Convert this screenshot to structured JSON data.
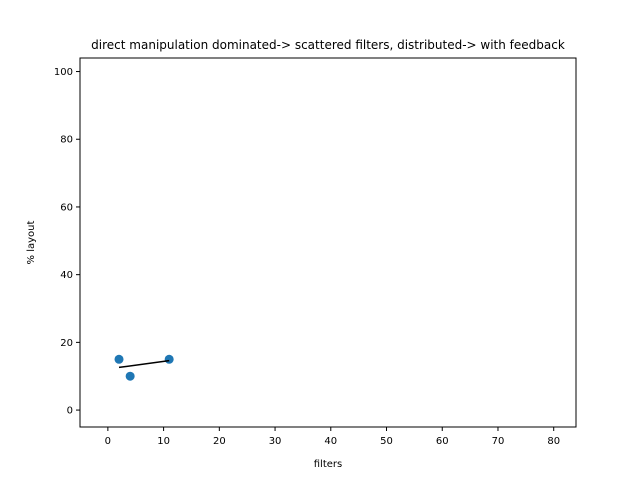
{
  "chart_data": {
    "type": "scatter",
    "title": "direct manipulation dominated-> scattered filters, distributed-> with feedback",
    "xlabel": "filters",
    "ylabel": "% layout",
    "xlim": [
      -5,
      84
    ],
    "ylim": [
      -5,
      104
    ],
    "xticks": [
      0,
      10,
      20,
      30,
      40,
      50,
      60,
      70,
      80
    ],
    "yticks": [
      0,
      20,
      40,
      60,
      80,
      100
    ],
    "grid": false,
    "points": [
      {
        "x": 2,
        "y": 15
      },
      {
        "x": 4,
        "y": 10
      },
      {
        "x": 11,
        "y": 15
      }
    ],
    "trendline": {
      "x": [
        2,
        11
      ],
      "y": [
        12.6,
        14.6
      ]
    },
    "colors": {
      "points": "#1f77b4",
      "trendline": "#000000",
      "axes": "#000000"
    }
  }
}
